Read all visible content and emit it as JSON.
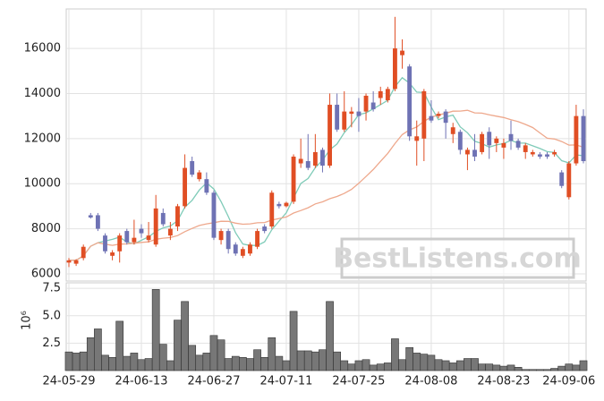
{
  "chart_data": {
    "type": "candlestick",
    "categories": [
      "24-05-29",
      null,
      null,
      null,
      null,
      null,
      null,
      null,
      null,
      null,
      "24-06-13",
      null,
      null,
      null,
      null,
      null,
      null,
      null,
      null,
      null,
      "24-06-27",
      null,
      null,
      null,
      null,
      null,
      null,
      null,
      null,
      null,
      "24-07-11",
      null,
      null,
      null,
      null,
      null,
      null,
      null,
      null,
      null,
      "24-07-25",
      null,
      null,
      null,
      null,
      null,
      null,
      null,
      null,
      null,
      "24-08-08",
      null,
      null,
      null,
      null,
      null,
      null,
      null,
      null,
      null,
      "24-08-23",
      null,
      null,
      null,
      null,
      null,
      null,
      null,
      null,
      "24-09-06",
      null,
      null
    ],
    "open": [
      6500,
      6450,
      6700,
      8600,
      8600,
      7700,
      6800,
      7000,
      7900,
      7400,
      8000,
      7500,
      7300,
      8700,
      7700,
      8100,
      9000,
      11000,
      10200,
      10200,
      9600,
      7500,
      7900,
      7300,
      6800,
      6900,
      7200,
      8100,
      8100,
      9100,
      9000,
      9200,
      10900,
      11000,
      10800,
      11500,
      10800,
      13500,
      12400,
      13100,
      13200,
      13200,
      13600,
      13800,
      13700,
      14200,
      15700,
      15200,
      11900,
      12000,
      13000,
      13000,
      13200,
      12200,
      12300,
      11300,
      11500,
      11400,
      12300,
      11800,
      11600,
      12200,
      11900,
      11400,
      11300,
      11300,
      11300,
      11300,
      10500,
      9400,
      10900,
      13000
    ],
    "high": [
      6700,
      6650,
      7300,
      8700,
      8700,
      7800,
      7050,
      7800,
      8000,
      8400,
      8200,
      8300,
      9500,
      8900,
      8300,
      9100,
      11300,
      11200,
      10600,
      10500,
      9700,
      8000,
      8000,
      7400,
      7200,
      7400,
      8000,
      8200,
      9700,
      9200,
      9200,
      11300,
      12000,
      12200,
      12200,
      11600,
      14000,
      14000,
      14100,
      13400,
      13800,
      14000,
      14100,
      14300,
      14300,
      17400,
      16400,
      15300,
      12800,
      14200,
      13700,
      13200,
      13300,
      12700,
      12400,
      11600,
      12200,
      12300,
      12500,
      12100,
      12000,
      12800,
      12000,
      11800,
      11500,
      11400,
      11400,
      11500,
      10600,
      11000,
      13500,
      13300
    ],
    "low": [
      6300,
      6350,
      6600,
      8450,
      7900,
      6900,
      6600,
      6500,
      7300,
      7300,
      7600,
      7400,
      7200,
      8100,
      7500,
      7900,
      8900,
      10300,
      10100,
      9500,
      7500,
      7300,
      6900,
      6800,
      6700,
      6800,
      7100,
      7800,
      8000,
      8900,
      8950,
      9100,
      10700,
      10600,
      10700,
      10500,
      10700,
      12300,
      12300,
      12500,
      12300,
      12800,
      13200,
      13500,
      13600,
      14100,
      15100,
      11900,
      10800,
      11000,
      12700,
      12900,
      12000,
      11800,
      11300,
      10600,
      11000,
      11300,
      11100,
      11400,
      11100,
      11500,
      11500,
      11100,
      11200,
      11100,
      11100,
      11200,
      9800,
      9300,
      10800,
      10900
    ],
    "close": [
      6600,
      6600,
      7200,
      8500,
      8000,
      7000,
      6950,
      7700,
      7400,
      7600,
      7800,
      7700,
      8900,
      8200,
      8000,
      9000,
      10700,
      10400,
      10500,
      9600,
      7600,
      7900,
      7100,
      6900,
      7100,
      7300,
      7900,
      7900,
      9600,
      9000,
      9150,
      11200,
      11100,
      10700,
      11400,
      10800,
      13500,
      12400,
      13200,
      13200,
      13000,
      13900,
      13300,
      14100,
      14200,
      16000,
      15900,
      12100,
      12100,
      14100,
      12800,
      13100,
      12700,
      12500,
      11500,
      11500,
      11200,
      12200,
      11700,
      12000,
      11800,
      11900,
      11600,
      11700,
      11400,
      11200,
      11200,
      11400,
      9900,
      10900,
      13000,
      11000
    ],
    "volume": [
      1.7,
      1.6,
      1.7,
      3.0,
      3.8,
      1.4,
      1.2,
      4.5,
      1.3,
      1.6,
      1.0,
      1.1,
      7.4,
      2.4,
      0.9,
      4.6,
      6.3,
      2.3,
      1.4,
      1.6,
      3.2,
      2.8,
      1.1,
      1.3,
      1.2,
      1.1,
      1.9,
      1.2,
      3.0,
      1.3,
      0.9,
      5.4,
      1.8,
      1.8,
      1.7,
      1.9,
      6.3,
      1.7,
      0.9,
      0.6,
      0.9,
      1.0,
      0.5,
      0.6,
      0.7,
      2.9,
      1.0,
      2.1,
      1.6,
      1.5,
      1.4,
      1.0,
      0.9,
      0.7,
      0.9,
      1.1,
      1.1,
      0.6,
      0.6,
      0.5,
      0.4,
      0.5,
      0.3,
      0.1,
      0.1,
      0.1,
      0.1,
      0.2,
      0.4,
      0.6,
      0.5,
      0.9
    ],
    "up_color": "#e04e24",
    "down_color": "#6e72b4",
    "volume_color": "#777777",
    "moving_averages": [
      {
        "window": 5,
        "color": "#7fcbb8"
      },
      {
        "window": 20,
        "color": "#eea88c"
      }
    ],
    "ylim": [
      5680,
      17750
    ],
    "yticks": [
      6000,
      8000,
      10000,
      12000,
      14000,
      16000
    ],
    "volume_ylim": [
      0,
      8.0
    ],
    "volume_yticks": [
      {
        "value": 2.5,
        "label": "2.5"
      },
      {
        "value": 5,
        "label": "5.0"
      },
      {
        "value": 7.5,
        "label": "7.5"
      }
    ],
    "volume_unit": "10⁶",
    "watermark": "BestListens.com",
    "grid": true
  }
}
